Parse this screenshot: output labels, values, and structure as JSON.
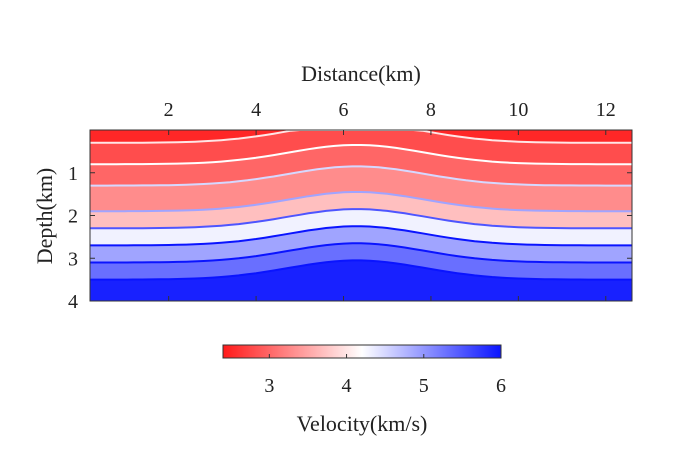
{
  "chart_data": [
    {
      "type": "heatmap",
      "xlabel": "Distance(km)",
      "ylabel": "Depth(km)",
      "xlim": [
        0.2,
        12.6
      ],
      "ylim": [
        0,
        4
      ],
      "x_axis_position": "top",
      "y_axis_direction": "reversed",
      "x_ticks": [
        2,
        4,
        6,
        8,
        10,
        12
      ],
      "y_ticks": [
        1,
        2,
        3,
        4
      ],
      "colormap": "red-white-blue",
      "color_range": [
        2.4,
        6
      ],
      "color_min": "#ff1a1a",
      "color_mid": "#ffffff",
      "color_max": "#0a14ff",
      "grid": false,
      "description_layers": [
        {
          "top_depth": 0.0,
          "velocity": 2.5
        },
        {
          "top_depth": 0.3,
          "velocity": 2.8
        },
        {
          "top_depth": 0.8,
          "velocity": 3.0
        },
        {
          "top_depth": 1.3,
          "velocity": 3.3
        },
        {
          "top_depth": 1.9,
          "velocity": 3.7
        },
        {
          "top_depth": 2.3,
          "velocity": 4.3
        },
        {
          "top_depth": 2.7,
          "velocity": 4.9
        },
        {
          "top_depth": 3.1,
          "velocity": 5.3
        },
        {
          "top_depth": 3.5,
          "velocity": 5.9
        }
      ]
    },
    {
      "type": "colorbar",
      "label": "Velocity(km/s)",
      "range": [
        2.4,
        6
      ],
      "ticks": [
        3,
        4,
        5,
        6
      ]
    }
  ]
}
